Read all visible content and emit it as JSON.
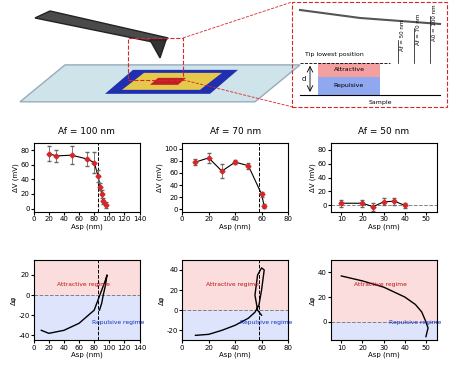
{
  "schematic": {
    "amplitudes": [
      "Af = 50 nm",
      "Af = 70 nm",
      "A0 = 100 nm"
    ],
    "tip_label": "Tip lowest position",
    "attractive": "Attractive",
    "repulsive": "Repulsive",
    "distance": "d",
    "sample": "Sample"
  },
  "chart_data": [
    {
      "type": "line",
      "title": "Af = 100 nm",
      "x_label": "Asp (nm)",
      "y_label": "ΔV (mV)",
      "x": [
        20,
        30,
        50,
        70,
        80,
        85,
        88,
        90,
        92,
        95
      ],
      "values": [
        75,
        72,
        73,
        68,
        63,
        45,
        30,
        20,
        10,
        5
      ],
      "errors": [
        10,
        8,
        12,
        10,
        15,
        8,
        5,
        5,
        4,
        4
      ],
      "color": "#d62728",
      "marker": "diamond",
      "xlim": [
        0,
        140
      ],
      "ylim": [
        -5,
        90
      ],
      "xticks": [
        0,
        20,
        40,
        60,
        80,
        100,
        120,
        140
      ],
      "yticks": [
        0,
        20,
        40,
        60,
        80
      ],
      "vline": 85
    },
    {
      "type": "line",
      "title": "Af = 70 nm",
      "x_label": "Asp (nm)",
      "y_label": "ΔV (mV)",
      "x": [
        10,
        20,
        30,
        40,
        50,
        60,
        62
      ],
      "values": [
        78,
        85,
        63,
        78,
        72,
        25,
        5
      ],
      "errors": [
        5,
        8,
        12,
        3,
        5,
        4,
        3
      ],
      "color": "#d62728",
      "marker": "diamond",
      "xlim": [
        0,
        80
      ],
      "ylim": [
        -5,
        110
      ],
      "xticks": [
        0,
        20,
        40,
        60,
        80
      ],
      "yticks": [
        0,
        20,
        40,
        60,
        80,
        100
      ],
      "vline": 58
    },
    {
      "type": "line",
      "title": "Af = 50 nm",
      "x_label": "Asp (nm)",
      "y_label": "ΔV (mV)",
      "x": [
        10,
        20,
        25,
        30,
        35,
        40
      ],
      "values": [
        3,
        3,
        -2,
        5,
        6,
        0
      ],
      "errors": [
        5,
        5,
        6,
        5,
        5,
        4
      ],
      "color": "#d62728",
      "marker": "diamond",
      "xlim": [
        5,
        55
      ],
      "ylim": [
        -10,
        90
      ],
      "xticks": [
        10,
        20,
        30,
        40,
        50
      ],
      "yticks": [
        0,
        20,
        40,
        60,
        80
      ],
      "hline": 0
    },
    {
      "type": "line",
      "x_label": "Asp (nm)",
      "y_label": "Δφ",
      "x": [
        10,
        20,
        40,
        60,
        80,
        85,
        90,
        95,
        97,
        95,
        92,
        90,
        87
      ],
      "values": [
        -35,
        -38,
        -35,
        -28,
        -15,
        -5,
        5,
        15,
        20,
        10,
        0,
        -8,
        -15
      ],
      "color": "#000000",
      "xlim": [
        0,
        140
      ],
      "ylim": [
        -45,
        35
      ],
      "xticks": [
        0,
        20,
        40,
        60,
        80,
        100,
        120,
        140
      ],
      "yticks": [
        -40,
        -20,
        0,
        20
      ],
      "vline": 85,
      "hline": 0,
      "annotations": [
        "Attractive regime",
        "Repulsive regime"
      ]
    },
    {
      "type": "line",
      "x_label": "Asp (nm)",
      "y_label": "Δφ",
      "x": [
        10,
        20,
        30,
        40,
        50,
        55,
        58,
        60,
        62,
        60,
        57,
        55,
        57,
        60
      ],
      "values": [
        -25,
        -24,
        -20,
        -15,
        -8,
        -2,
        5,
        20,
        40,
        42,
        35,
        15,
        0,
        -5
      ],
      "color": "#000000",
      "xlim": [
        0,
        80
      ],
      "ylim": [
        -30,
        50
      ],
      "xticks": [
        0,
        20,
        40,
        60,
        80
      ],
      "yticks": [
        -20,
        0,
        20,
        40
      ],
      "vline": 58,
      "hline": 0,
      "annotations": [
        "Attractive regime",
        "Repulsive regime"
      ]
    },
    {
      "type": "line",
      "x_label": "Asp (nm)",
      "y_label": "Δφ",
      "x": [
        10,
        20,
        30,
        40,
        45,
        48,
        50,
        51,
        50
      ],
      "values": [
        37,
        33,
        28,
        20,
        14,
        8,
        0,
        -5,
        -12
      ],
      "color": "#000000",
      "xlim": [
        5,
        55
      ],
      "ylim": [
        -15,
        50
      ],
      "xticks": [
        10,
        20,
        30,
        40,
        50
      ],
      "yticks": [
        0,
        20,
        40
      ],
      "hline": 0,
      "annotations": [
        "Attractive regime",
        "Repulsive regime"
      ]
    }
  ]
}
